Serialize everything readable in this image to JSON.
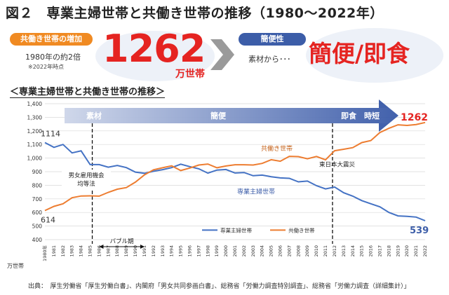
{
  "header": {
    "title": "図２　専業主婦世帯と共働き世帯の推移（1980～2022年）"
  },
  "callout_left": {
    "label": "共働き世帯の増加",
    "note": "1980年の約2倍",
    "footnote": "※2022年時点",
    "big_number": "1262",
    "unit": "万世帯"
  },
  "callout_right": {
    "label": "簡便性",
    "note": "素材から･･･",
    "big_text": "簡便/即食"
  },
  "chart_subtitle": "＜専業主婦世帯と共働き世帯の推移＞",
  "source_line": "出典：　厚生労働省「厚生労働白書」、内閣府「男女共同参画白書」、総務省「労働力調査特別調査」、総務省「労働力調査（詳細集計）」",
  "colors": {
    "accent_orange": "#f08a22",
    "accent_blue": "#3c5da8",
    "highlight_red": "#e52421",
    "arrow_blue": "#2d50a3"
  },
  "chart_data": {
    "type": "line",
    "y_unit": "万世帯",
    "ylim": [
      400,
      1400
    ],
    "yticks": [
      400,
      500,
      600,
      700,
      800,
      900,
      1000,
      1100,
      1200,
      1300,
      1400
    ],
    "x": [
      "1980年",
      "1981",
      "1982",
      "1983",
      "1984",
      "1985",
      "1986",
      "1987",
      "1988",
      "1989",
      "1990",
      "1991",
      "1992",
      "1993",
      "1994",
      "1995",
      "1996",
      "1997",
      "1998",
      "1999",
      "2000",
      "2001",
      "2002",
      "2003",
      "2004",
      "2005",
      "2006",
      "2007",
      "2008",
      "2009",
      "2010",
      "2011",
      "2012",
      "2013",
      "2014",
      "2015",
      "2016",
      "2017",
      "2018",
      "2019",
      "2020",
      "2021",
      "2022"
    ],
    "series": [
      {
        "name": "専業主婦世帯",
        "color": "#4472c4",
        "values": [
          1114,
          1079,
          1100,
          1038,
          1053,
          952,
          952,
          933,
          946,
          930,
          897,
          888,
          903,
          915,
          930,
          955,
          937,
          921,
          889,
          912,
          916,
          890,
          894,
          870,
          875,
          863,
          854,
          851,
          825,
          831,
          797,
          773,
          787,
          745,
          720,
          687,
          664,
          641,
          600,
          575,
          571,
          566,
          539
        ]
      },
      {
        "name": "共働き世帯",
        "color": "#ed7d31",
        "values": [
          614,
          645,
          664,
          708,
          721,
          722,
          720,
          748,
          771,
          783,
          823,
          877,
          914,
          929,
          943,
          908,
          927,
          949,
          956,
          929,
          942,
          951,
          951,
          949,
          961,
          988,
          977,
          1013,
          1011,
          995,
          1012,
          987,
          1054,
          1065,
          1077,
          1114,
          1129,
          1188,
          1219,
          1245,
          1240,
          1247,
          1262
        ]
      }
    ],
    "annotations": {
      "start_professional": "1114",
      "start_dual": "614",
      "end_dual": "1262",
      "end_professional": "539",
      "series_label_dual": "共働き世帯",
      "series_label_professional": "専業主婦世帯",
      "event_1985": "男女雇用機会\n均等法",
      "event_2011": "東日本大震災",
      "bubble": "バブル期"
    },
    "top_arrow": {
      "phase1": "素材",
      "phase2": "簡便",
      "phase3": "即食　時短"
    },
    "legend": [
      {
        "name": "専業主婦世帯",
        "color": "#4472c4"
      },
      {
        "name": "共働き世帯",
        "color": "#ed7d31"
      }
    ],
    "legend_position": "bottom-center"
  }
}
